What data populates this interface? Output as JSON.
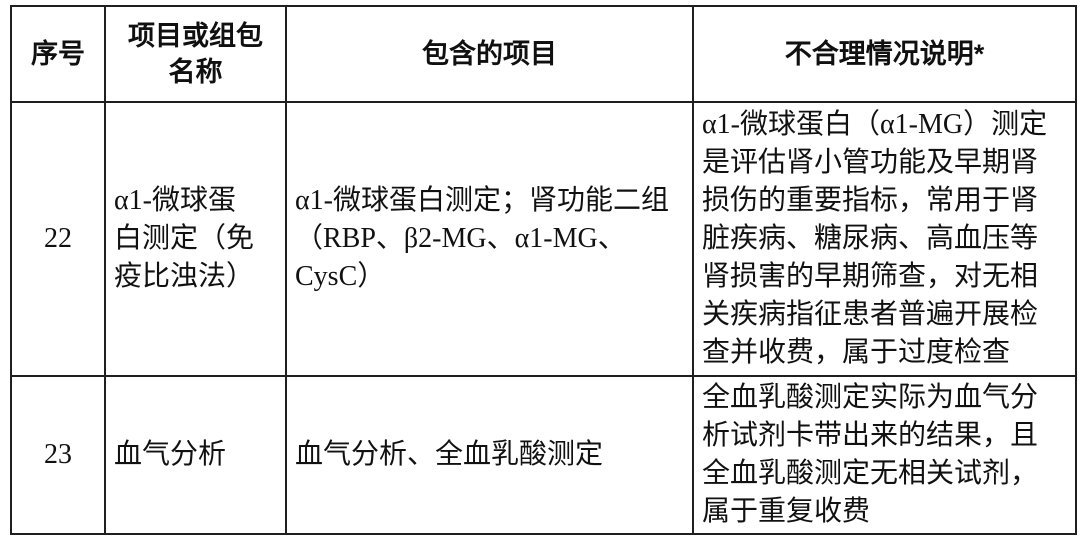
{
  "colors": {
    "background": "#ffffff",
    "border": "#1f1f1f",
    "text": "#111111"
  },
  "table": {
    "headers": [
      {
        "label": "序号"
      },
      {
        "label": "项目或组包\n名称"
      },
      {
        "label": "包含的项目"
      },
      {
        "label": "不合理情况说明*"
      }
    ],
    "rows": [
      {
        "no": "22",
        "name": "α1-微球蛋\n白测定（免\n疫比浊法）",
        "items": "α1-微球蛋白测定；肾功能二组\n（RBP、β2-MG、α1-MG、\nCysC）",
        "explanation": "α1-微球蛋白（α1-MG）测定\n是评估肾小管功能及早期肾\n损伤的重要指标，常用于肾\n脏疾病、糖尿病、高血压等\n肾损害的早期筛查，对无相\n关疾病指征患者普遍开展检\n查并收费，属于过度检查"
      },
      {
        "no": "23",
        "name": "血气分析",
        "items": "血气分析、全血乳酸测定",
        "explanation": "全血乳酸测定实际为血气分\n析试剂卡带出来的结果，且\n全血乳酸测定无相关试剂，\n属于重复收费"
      }
    ]
  }
}
